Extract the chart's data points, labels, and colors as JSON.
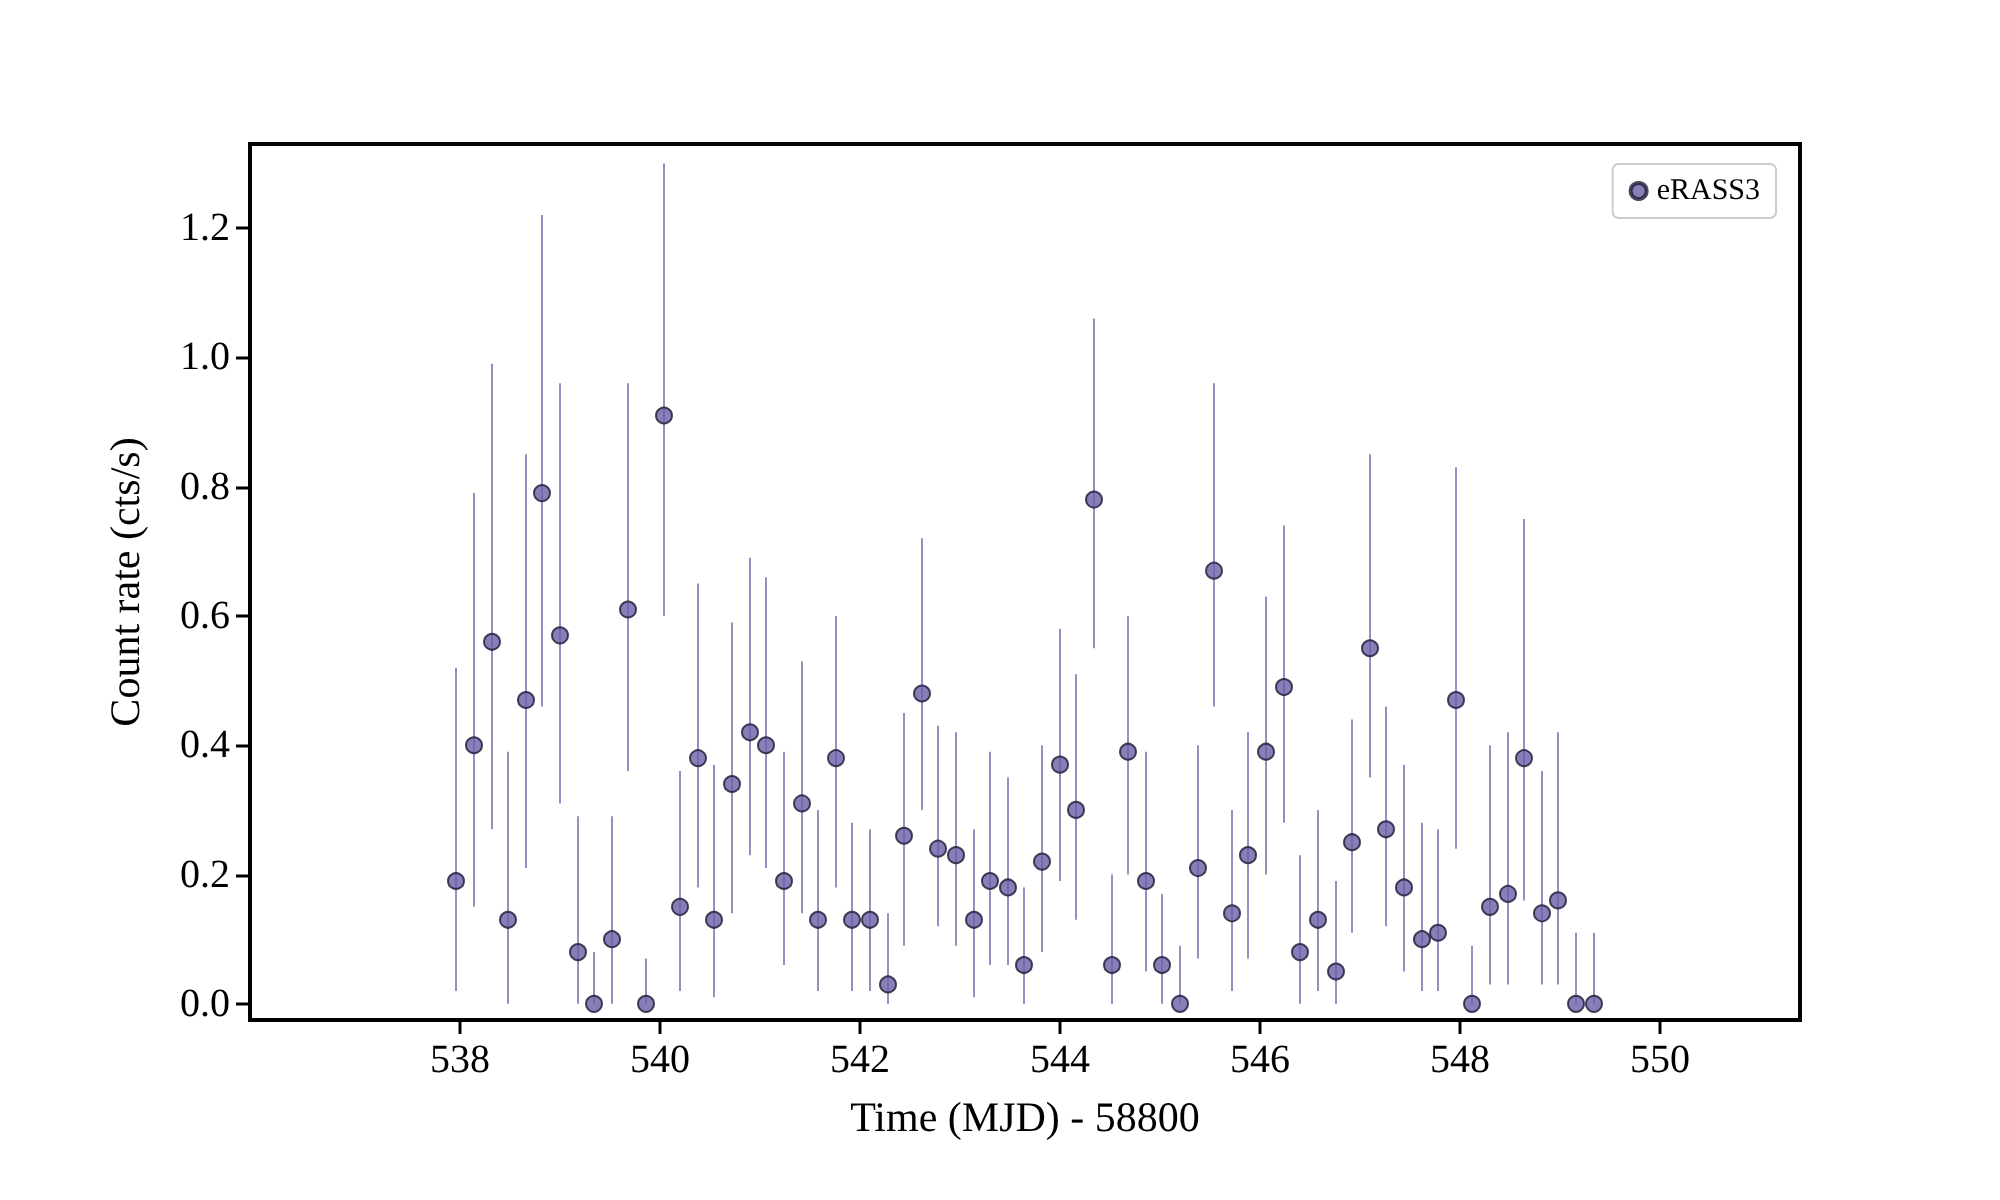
{
  "chart_data": {
    "type": "scatter",
    "xlabel": "Time (MJD) - 58800",
    "ylabel": "Count rate (cts/s)",
    "xlim": [
      535.9,
      551.4
    ],
    "xticks": [
      538,
      540,
      542,
      544,
      546,
      548,
      550
    ],
    "ylim": [
      -0.025,
      1.33
    ],
    "yticks": [
      {
        "value": 0,
        "label": "0.0"
      },
      {
        "value": 0.2,
        "label": "0.2"
      },
      {
        "value": 0.4,
        "label": "0.4"
      },
      {
        "value": 0.6,
        "label": "0.6"
      },
      {
        "value": 0.8,
        "label": "0.8"
      },
      {
        "value": 1.0,
        "label": "1.0"
      },
      {
        "value": 1.2,
        "label": "1.2"
      }
    ],
    "grid": false,
    "legend": "top right",
    "marker": "circle",
    "series": [
      {
        "name": "eRASS3",
        "color": "#6a5fa8",
        "x": [
          537.96,
          538.14,
          538.32,
          538.48,
          538.66,
          538.82,
          539.0,
          539.18,
          539.34,
          539.52,
          539.68,
          539.86,
          540.04,
          540.2,
          540.38,
          540.54,
          540.72,
          540.9,
          541.06,
          541.24,
          541.42,
          541.58,
          541.76,
          541.92,
          542.1,
          542.28,
          542.44,
          542.62,
          542.78,
          542.96,
          543.14,
          543.3,
          543.48,
          543.64,
          543.82,
          544.0,
          544.16,
          544.34,
          544.52,
          544.68,
          544.86,
          545.02,
          545.2,
          545.38,
          545.54,
          545.72,
          545.88,
          546.06,
          546.24,
          546.4,
          546.58,
          546.76,
          546.92,
          547.1,
          547.26,
          547.44,
          547.62,
          547.78,
          547.96,
          548.12,
          548.3,
          548.48,
          548.64,
          548.82,
          548.98,
          549.16,
          549.34
        ],
        "values": [
          0.19,
          0.4,
          0.56,
          0.13,
          0.47,
          0.79,
          0.57,
          0.08,
          0.0,
          0.1,
          0.61,
          0.0,
          0.91,
          0.15,
          0.38,
          0.13,
          0.34,
          0.42,
          0.4,
          0.19,
          0.31,
          0.13,
          0.38,
          0.13,
          0.13,
          0.03,
          0.26,
          0.48,
          0.24,
          0.23,
          0.13,
          0.19,
          0.18,
          0.06,
          0.22,
          0.37,
          0.3,
          0.78,
          0.06,
          0.39,
          0.19,
          0.06,
          0.0,
          0.21,
          0.67,
          0.14,
          0.23,
          0.39,
          0.49,
          0.08,
          0.13,
          0.05,
          0.25,
          0.55,
          0.27,
          0.18,
          0.1,
          0.11,
          0.47,
          0.0,
          0.15,
          0.17,
          0.38,
          0.14,
          0.16,
          0.0,
          0.0
        ],
        "errors": [
          [
            0.02,
            0.52
          ],
          [
            0.15,
            0.79
          ],
          [
            0.27,
            0.99
          ],
          [
            0.0,
            0.39
          ],
          [
            0.21,
            0.85
          ],
          [
            0.46,
            1.22
          ],
          [
            0.31,
            0.96
          ],
          [
            0.0,
            0.29
          ],
          [
            0.0,
            0.08
          ],
          [
            0.0,
            0.29
          ],
          [
            0.36,
            0.96
          ],
          [
            0.0,
            0.07
          ],
          [
            0.6,
            1.3
          ],
          [
            0.02,
            0.36
          ],
          [
            0.18,
            0.65
          ],
          [
            0.01,
            0.37
          ],
          [
            0.14,
            0.59
          ],
          [
            0.23,
            0.69
          ],
          [
            0.21,
            0.66
          ],
          [
            0.06,
            0.39
          ],
          [
            0.14,
            0.53
          ],
          [
            0.02,
            0.3
          ],
          [
            0.18,
            0.6
          ],
          [
            0.02,
            0.28
          ],
          [
            0.02,
            0.27
          ],
          [
            0.0,
            0.14
          ],
          [
            0.09,
            0.45
          ],
          [
            0.3,
            0.72
          ],
          [
            0.12,
            0.43
          ],
          [
            0.09,
            0.42
          ],
          [
            0.01,
            0.27
          ],
          [
            0.06,
            0.39
          ],
          [
            0.06,
            0.35
          ],
          [
            0.0,
            0.18
          ],
          [
            0.08,
            0.4
          ],
          [
            0.19,
            0.58
          ],
          [
            0.13,
            0.51
          ],
          [
            0.55,
            1.06
          ],
          [
            0.0,
            0.2
          ],
          [
            0.2,
            0.6
          ],
          [
            0.05,
            0.39
          ],
          [
            0.0,
            0.17
          ],
          [
            0.0,
            0.09
          ],
          [
            0.07,
            0.4
          ],
          [
            0.46,
            0.96
          ],
          [
            0.02,
            0.3
          ],
          [
            0.07,
            0.42
          ],
          [
            0.2,
            0.63
          ],
          [
            0.28,
            0.74
          ],
          [
            0.0,
            0.23
          ],
          [
            0.02,
            0.3
          ],
          [
            0.0,
            0.19
          ],
          [
            0.11,
            0.44
          ],
          [
            0.35,
            0.85
          ],
          [
            0.12,
            0.46
          ],
          [
            0.05,
            0.37
          ],
          [
            0.02,
            0.28
          ],
          [
            0.02,
            0.27
          ],
          [
            0.24,
            0.83
          ],
          [
            0.0,
            0.09
          ],
          [
            0.03,
            0.4
          ],
          [
            0.03,
            0.42
          ],
          [
            0.16,
            0.75
          ],
          [
            0.03,
            0.36
          ],
          [
            0.03,
            0.42
          ],
          [
            0.0,
            0.11
          ],
          [
            0.0,
            0.11
          ]
        ]
      }
    ]
  }
}
